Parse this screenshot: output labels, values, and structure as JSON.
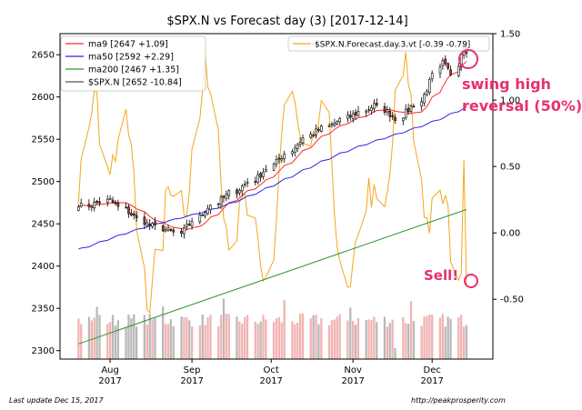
{
  "chart_data": {
    "type": "candlestick",
    "title": "$SPX.N vs Forecast day (3)  [2017-12-14]",
    "x_ticks": [
      {
        "date": "2017-08-01",
        "month": "Aug",
        "year": "2017"
      },
      {
        "date": "2017-09-01",
        "month": "Sep",
        "year": "2017"
      },
      {
        "date": "2017-10-01",
        "month": "Oct",
        "year": "2017"
      },
      {
        "date": "2017-11-01",
        "month": "Nov",
        "year": "2017"
      },
      {
        "date": "2017-12-01",
        "month": "Dec",
        "year": "2017"
      }
    ],
    "xlim": [
      "2017-07-13",
      "2017-12-24"
    ],
    "y_left": {
      "ylim": [
        2290,
        2675
      ],
      "ticks": [
        2300,
        2350,
        2400,
        2450,
        2500,
        2550,
        2600,
        2650
      ]
    },
    "y_right": {
      "ylim": [
        -0.95,
        1.5
      ],
      "ticks": [
        1.5,
        1.0,
        0.5,
        0.0,
        -0.5
      ],
      "tick_labels": [
        "1.50",
        "1.00",
        "0.50",
        "0.00",
        "-0.50"
      ]
    },
    "legend_left": [
      {
        "label": "ma9 [2647 +1.09]",
        "color": "#ff2a2a"
      },
      {
        "label": "ma50 [2592 +2.29]",
        "color": "#2a2adf"
      },
      {
        "label": "ma200 [2467 +1.35]",
        "color": "#2a9a2a"
      },
      {
        "label": "$SPX.N [2652 -10.84]",
        "color": "#555555"
      }
    ],
    "legend_right": [
      {
        "label": "$SPX.N.Forecast.day.3.vt [-0.39 -0.79]",
        "color": "#f4a71b"
      }
    ],
    "colors": {
      "up_volume": "#f2b3b3",
      "down_volume": "#b9b9b9",
      "candle_up": "#ffffff",
      "candle_down": "#c0392b",
      "forecast": "#f4a71b",
      "ma9": "#ff2a2a",
      "ma50": "#2a2adf",
      "ma200": "#2a9a2a",
      "annotation": "#e8306e"
    },
    "close_start": 2470,
    "close_end": 2652,
    "ma50_start": 2420,
    "ma50_end": 2592,
    "ma200_start": 2308,
    "ma200_end": 2467,
    "annotations": [
      {
        "text": "swing high\nreversal (50%)",
        "lines": [
          "swing high",
          "reversal (50%)"
        ]
      },
      {
        "text": "Sell!"
      }
    ]
  },
  "footer": {
    "left": "Last update Dec 15, 2017",
    "right": "http://peakprosperity.com"
  }
}
